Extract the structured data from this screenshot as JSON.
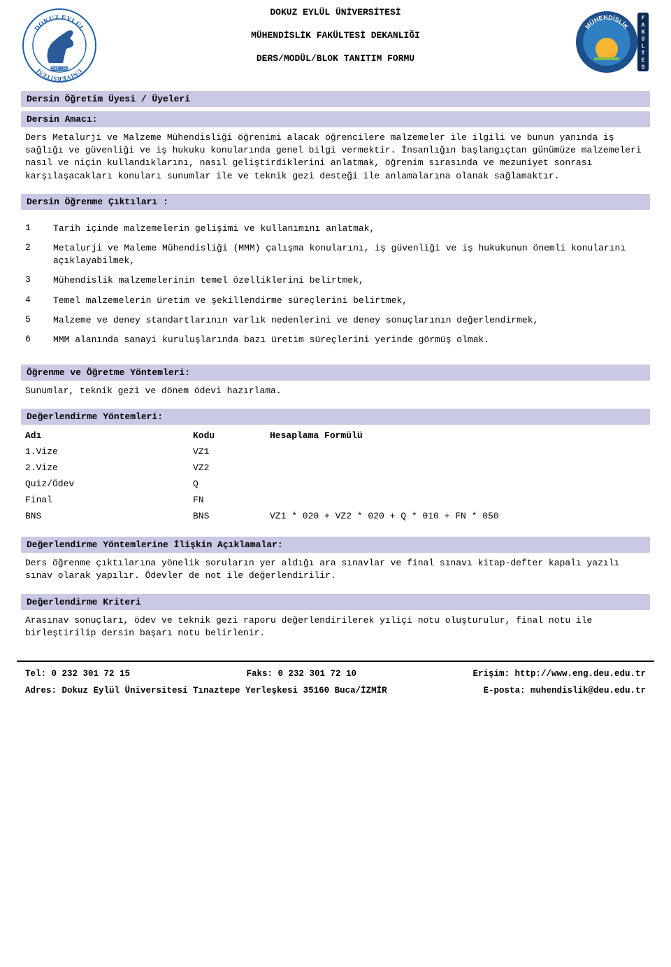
{
  "header": {
    "line1": "DOKUZ EYLÜL ÜNİVERSİTESİ",
    "line2": "MÜHENDİSLİK FAKÜLTESİ DEKANLIĞI",
    "line3": "DERS/MODÜL/BLOK TANITIM FORMU"
  },
  "logo_left": {
    "text_top": "DOKUZ EYLÜL",
    "text_bottom": "ÜNİVERSİTESİ",
    "year": "İZMİR-1982",
    "ring_color": "#1f5fa8",
    "horse_color": "#2a5a99"
  },
  "logo_right": {
    "text_top": "MÜHENDİSLİK",
    "side_text": "FAKÜLTESİ",
    "sun_color": "#f7b531",
    "sky_color": "#2f7fc2",
    "ring_color": "#1c4f8b"
  },
  "sections": {
    "instructor_label": "Dersin Öğretim Üyesi / Üyeleri",
    "aim_label": "Dersin Amacı:",
    "aim_text": "Ders Metalurji ve Malzeme Mühendisliği öğrenimi alacak öğrencilere malzemeler ile ilgili ve bunun yanında iş sağlığı ve güvenliği ve iş hukuku konularında genel bilgi vermektir. İnsanlığın başlangıçtan günümüze malzemeleri nasıl ve niçin kullandıklarını, nasıl geliştirdiklerini anlatmak, öğrenim sırasında ve mezuniyet sonrası karşılaşacakları konuları sunumlar ile ve  teknik gezi desteği ile anlamalarına olanak sağlamaktır.",
    "outcomes_label": "Dersin Öğrenme Çıktıları :",
    "methods_label": "Öğrenme ve Öğretme Yöntemleri:",
    "methods_text": "Sunumlar, teknik gezi ve dönem ödevi hazırlama.",
    "eval_label": "Değerlendirme Yöntemleri:",
    "eval_cols": {
      "c1": "Adı",
      "c2": "Kodu",
      "c3": "Hesaplama Formülü"
    },
    "eval_notes_label": "Değerlendirme Yöntemlerine İlişkin Açıklamalar:",
    "eval_notes_text": "Ders öğrenme çıktılarına yönelik soruların yer aldığı ara sınavlar ve final sınavı kitap-defter kapalı yazılı sınav olarak yapılır. Ödevler de not ile değerlendirilir.",
    "criteria_label": "Değerlendirme Kriteri",
    "criteria_text": "Arasınav sonuçları, ödev ve teknik gezi raporu değerlendirilerek yıliçi notu oluşturulur, final notu ile birleştirilip dersin başarı notu belirlenir."
  },
  "outcomes": [
    {
      "n": "1",
      "t": "Tarih içinde malzemelerin gelişimi ve kullanımını anlatmak,"
    },
    {
      "n": "2",
      "t": "Metalurji ve Maleme Mühendisliği (MMM) çalışma konularını, iş güvenliği ve iş hukukunun önemli konularını açıklayabilmek,"
    },
    {
      "n": "3",
      "t": "Mühendislik malzemelerinin temel özelliklerini belirtmek,"
    },
    {
      "n": "4",
      "t": "Temel malzemelerin üretim ve şekillendirme süreçlerini belirtmek,"
    },
    {
      "n": "5",
      "t": "Malzeme ve deney standartlarının  varlık nedenlerini ve deney sonuçlarının değerlendirmek,"
    },
    {
      "n": "6",
      "t": "MMM alanında sanayi kuruluşlarında bazı üretim süreçlerini yerinde görmüş olmak."
    }
  ],
  "eval_rows": [
    {
      "name": "1.Vize",
      "code": "VZ1",
      "formula": ""
    },
    {
      "name": "2.Vize",
      "code": "VZ2",
      "formula": ""
    },
    {
      "name": "Quiz/Ödev",
      "code": "Q",
      "formula": ""
    },
    {
      "name": "Final",
      "code": "FN",
      "formula": ""
    },
    {
      "name": "BNS",
      "code": "BNS",
      "formula": "VZ1 * 020 + VZ2 * 020 + Q * 010 +  FN * 050"
    }
  ],
  "footer": {
    "tel": "Tel: 0 232 301 72 15",
    "faks": "Faks: 0 232 301 72 10",
    "erisim": "Erişim: http://www.eng.deu.edu.tr",
    "adres": "Adres: Dokuz Eylül Üniversitesi Tınaztepe Yerleşkesi 35160 Buca/İZMİR",
    "eposta": "E-posta: muhendislik@deu.edu.tr"
  },
  "colors": {
    "bar_bg": "#c9c9e5",
    "text": "#000000"
  }
}
